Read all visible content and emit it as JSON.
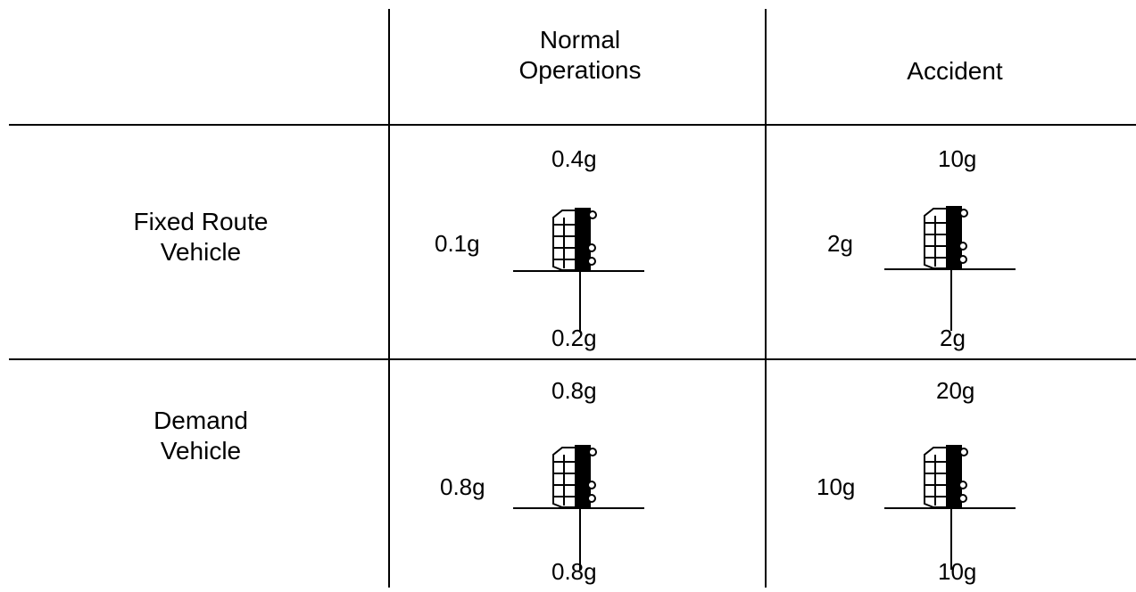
{
  "table": {
    "headers": {
      "normal": "Normal\nOperations",
      "accident": "Accident"
    },
    "rows": [
      {
        "label": "Fixed Route\nVehicle",
        "normal": {
          "up": "0.4g",
          "side": "0.1g",
          "down": "0.2g"
        },
        "accident": {
          "up": "10g",
          "side": "2g",
          "down": "2g"
        }
      },
      {
        "label": "Demand\nVehicle",
        "normal": {
          "up": "0.8g",
          "side": "0.8g",
          "down": "0.8g"
        },
        "accident": {
          "up": "20g",
          "side": "10g",
          "down": "10g"
        }
      }
    ]
  },
  "icons": {
    "vehicle": "bus-front-icon"
  }
}
